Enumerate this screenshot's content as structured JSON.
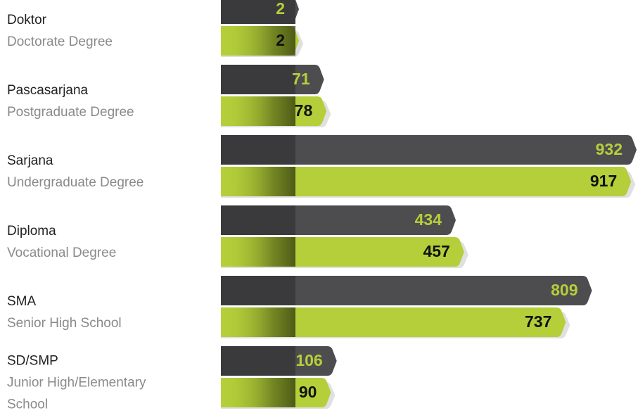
{
  "chart_data": {
    "type": "bar",
    "categories": [
      {
        "name": "Doktor",
        "subtitle": "Doctorate Degree"
      },
      {
        "name": "Pascasarjana",
        "subtitle": "Postgraduate Degree"
      },
      {
        "name": "Sarjana",
        "subtitle": "Undergraduate Degree"
      },
      {
        "name": "Diploma",
        "subtitle": "Vocational Degree"
      },
      {
        "name": "SMA",
        "subtitle": "Senior High School"
      },
      {
        "name": "SD/SMP",
        "subtitle": "Junior High/Elementary School"
      }
    ],
    "series": [
      {
        "color": "#4d4d4f",
        "label_color": "#b5cf3a",
        "values": [
          2,
          71,
          932,
          434,
          809,
          106
        ]
      },
      {
        "color": "#b5cf3a",
        "label_color": "#111111",
        "values": [
          2,
          78,
          917,
          457,
          737,
          90
        ]
      }
    ]
  }
}
